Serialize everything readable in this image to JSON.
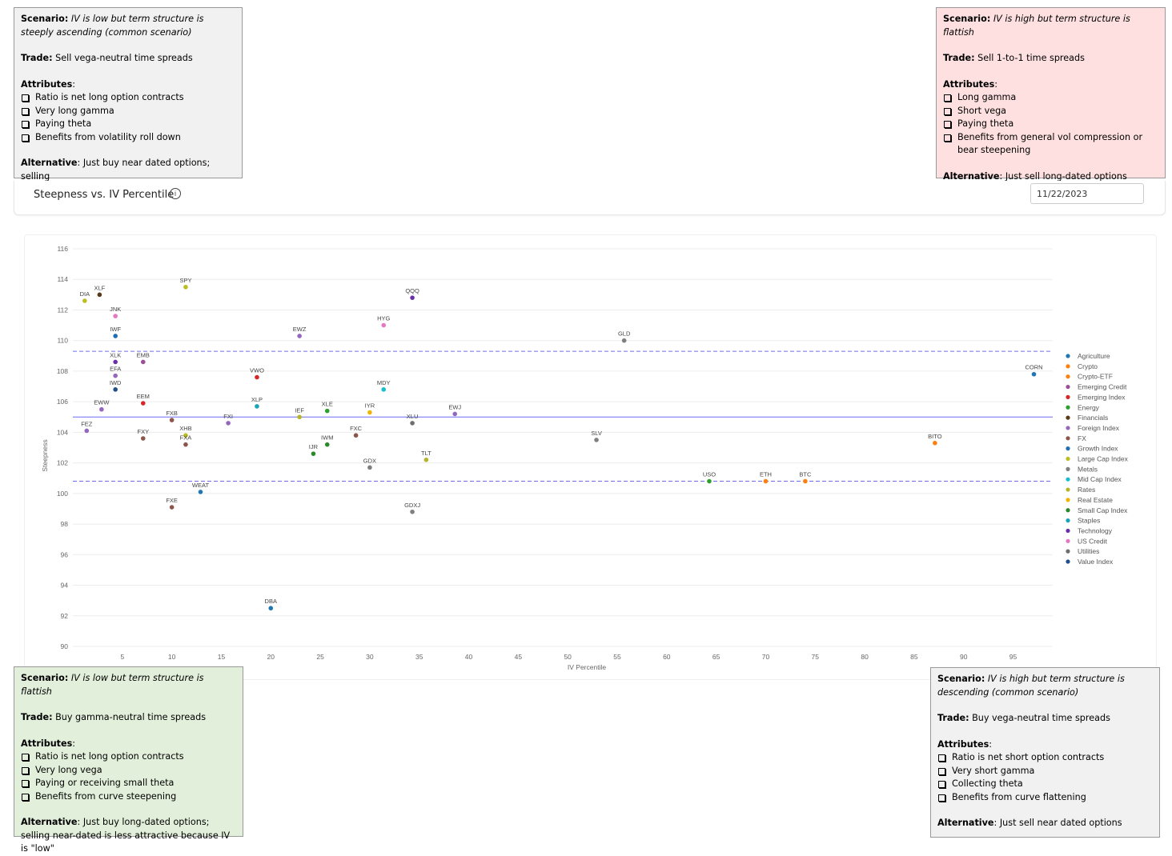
{
  "header": {
    "title": "Steepness vs. IV Percentile",
    "info_icon": "info-icon",
    "date_value": "11/22/2023"
  },
  "boxes": {
    "top_left": {
      "scenario_label": "Scenario:",
      "scenario": "IV is low but term structure is steeply ascending (common scenario)",
      "trade_label": "Trade:",
      "trade": "Sell vega-neutral time spreads",
      "attributes_label": "Attributes",
      "attributes": [
        "Ratio is net long option contracts",
        "Very long gamma",
        "Paying theta",
        "Benefits from volatility roll down"
      ],
      "alternative_label": "Alternative",
      "alternative": ": Just buy near dated options; selling"
    },
    "top_right": {
      "scenario_label": "Scenario:",
      "scenario": "IV is high but term structure is flattish",
      "trade_label": "Trade:",
      "trade": "Sell 1-to-1 time spreads",
      "attributes_label": "Attributes",
      "attributes": [
        "Long gamma",
        "Short vega",
        "Paying theta",
        "Benefits from general vol compression or bear steepening"
      ],
      "alternative_label": "Alternative",
      "alternative": ": Just sell long-dated options"
    },
    "bottom_left": {
      "scenario_label": "Scenario:",
      "scenario": "IV is low but term structure is flattish",
      "trade_label": "Trade:",
      "trade": "Buy gamma-neutral time spreads",
      "attributes_label": "Attributes",
      "attributes": [
        "Ratio is net long option contracts",
        "Very long vega",
        "Paying or receiving small theta",
        "Benefits from curve steepening"
      ],
      "alternative_label": "Alternative",
      "alternative": ": Just buy long-dated options; selling near-dated is less attractive because IV is \"low\""
    },
    "bottom_right": {
      "scenario_label": "Scenario:",
      "scenario": "IV is high but term structure is descending (common scenario)",
      "trade_label": "Trade:",
      "trade": "Buy vega-neutral time spreads",
      "attributes_label": "Attributes",
      "attributes": [
        "Ratio is net short option contracts",
        "Very short gamma",
        "Collecting theta",
        "Benefits from curve flattening"
      ],
      "alternative_label": "Alternative",
      "alternative": ": Just sell near dated options"
    }
  },
  "chart_data": {
    "type": "scatter",
    "xlabel": "IV Percentile",
    "ylabel": "Steepness",
    "xlim": [
      0,
      99
    ],
    "ylim": [
      90,
      116
    ],
    "xticks": [
      5,
      10,
      15,
      20,
      25,
      30,
      35,
      40,
      45,
      50,
      55,
      60,
      65,
      70,
      75,
      80,
      85,
      90,
      95
    ],
    "yticks": [
      90,
      92,
      94,
      96,
      98,
      100,
      102,
      104,
      106,
      108,
      110,
      112,
      114,
      116
    ],
    "grid": "horizontal",
    "legend_position": "right",
    "reference_lines": [
      {
        "y": 109.3,
        "style": "dashed"
      },
      {
        "y": 105.0,
        "style": "solid"
      },
      {
        "y": 100.8,
        "style": "dashed"
      }
    ],
    "categories": [
      {
        "name": "Agriculture",
        "color": "#1f77b4"
      },
      {
        "name": "Crypto",
        "color": "#ff7f0e"
      },
      {
        "name": "Crypto-ETF",
        "color": "#ff7f0e"
      },
      {
        "name": "Emerging Credit",
        "color": "#9b4f96"
      },
      {
        "name": "Emerging Index",
        "color": "#d62728"
      },
      {
        "name": "Energy",
        "color": "#2ca02c"
      },
      {
        "name": "Financials",
        "color": "#5b3a1a"
      },
      {
        "name": "Foreign Index",
        "color": "#9467bd"
      },
      {
        "name": "FX",
        "color": "#8c564b"
      },
      {
        "name": "Growth Index",
        "color": "#1f6fb4"
      },
      {
        "name": "Large Cap Index",
        "color": "#bcbd22"
      },
      {
        "name": "Metals",
        "color": "#7f7f7f"
      },
      {
        "name": "Mid Cap Index",
        "color": "#17becf"
      },
      {
        "name": "Rates",
        "color": "#b5b52a"
      },
      {
        "name": "Real Estate",
        "color": "#f0b400"
      },
      {
        "name": "Small Cap Index",
        "color": "#2a8a2a"
      },
      {
        "name": "Staples",
        "color": "#1aa3b8"
      },
      {
        "name": "Technology",
        "color": "#6a2fa8"
      },
      {
        "name": "US Credit",
        "color": "#e377c2"
      },
      {
        "name": "Utilities",
        "color": "#6e6e6e"
      },
      {
        "name": "Value Index",
        "color": "#1f4f8a"
      }
    ],
    "points": [
      {
        "label": "DIA",
        "x": 1.2,
        "y": 112.6,
        "category": "Large Cap Index"
      },
      {
        "label": "XLF",
        "x": 2.7,
        "y": 113.0,
        "category": "Financials"
      },
      {
        "label": "SPY",
        "x": 11.4,
        "y": 113.5,
        "category": "Large Cap Index"
      },
      {
        "label": "JNK",
        "x": 4.3,
        "y": 111.6,
        "category": "US Credit"
      },
      {
        "label": "IWF",
        "x": 4.3,
        "y": 110.3,
        "category": "Growth Index"
      },
      {
        "label": "QQQ",
        "x": 34.3,
        "y": 112.8,
        "category": "Technology"
      },
      {
        "label": "HYG",
        "x": 31.4,
        "y": 111.0,
        "category": "US Credit"
      },
      {
        "label": "EWZ",
        "x": 22.9,
        "y": 110.3,
        "category": "Foreign Index"
      },
      {
        "label": "GLD",
        "x": 55.7,
        "y": 110.0,
        "category": "Metals"
      },
      {
        "label": "XLK",
        "x": 4.3,
        "y": 108.6,
        "category": "Technology"
      },
      {
        "label": "EMB",
        "x": 7.1,
        "y": 108.6,
        "category": "Emerging Credit"
      },
      {
        "label": "EFA",
        "x": 4.3,
        "y": 107.7,
        "category": "Foreign Index"
      },
      {
        "label": "VWO",
        "x": 18.6,
        "y": 107.6,
        "category": "Emerging Index"
      },
      {
        "label": "IWD",
        "x": 4.3,
        "y": 106.8,
        "category": "Value Index"
      },
      {
        "label": "MDY",
        "x": 31.4,
        "y": 106.8,
        "category": "Mid Cap Index"
      },
      {
        "label": "CORN",
        "x": 97.1,
        "y": 107.8,
        "category": "Agriculture"
      },
      {
        "label": "EEM",
        "x": 7.1,
        "y": 105.9,
        "category": "Emerging Index"
      },
      {
        "label": "XLP",
        "x": 18.6,
        "y": 105.7,
        "category": "Staples"
      },
      {
        "label": "EWW",
        "x": 2.9,
        "y": 105.5,
        "category": "Foreign Index"
      },
      {
        "label": "XLE",
        "x": 25.7,
        "y": 105.4,
        "category": "Energy"
      },
      {
        "label": "IYR",
        "x": 30.0,
        "y": 105.3,
        "category": "Real Estate"
      },
      {
        "label": "EWJ",
        "x": 38.6,
        "y": 105.2,
        "category": "Foreign Index"
      },
      {
        "label": "IEF",
        "x": 22.9,
        "y": 105.0,
        "category": "Rates"
      },
      {
        "label": "FXB",
        "x": 10.0,
        "y": 104.8,
        "category": "FX"
      },
      {
        "label": "FXI",
        "x": 15.7,
        "y": 104.6,
        "category": "Foreign Index"
      },
      {
        "label": "XLU",
        "x": 34.3,
        "y": 104.6,
        "category": "Utilities"
      },
      {
        "label": "FEZ",
        "x": 1.4,
        "y": 104.1,
        "category": "Foreign Index"
      },
      {
        "label": "FXY",
        "x": 7.1,
        "y": 103.6,
        "category": "FX"
      },
      {
        "label": "XHB",
        "x": 11.4,
        "y": 103.8,
        "category": "Large Cap Index"
      },
      {
        "label": "FXA",
        "x": 11.4,
        "y": 103.2,
        "category": "FX"
      },
      {
        "label": "FXC",
        "x": 28.6,
        "y": 103.8,
        "category": "FX"
      },
      {
        "label": "IWM",
        "x": 25.7,
        "y": 103.2,
        "category": "Small Cap Index"
      },
      {
        "label": "IJR",
        "x": 24.3,
        "y": 102.6,
        "category": "Small Cap Index"
      },
      {
        "label": "SLV",
        "x": 52.9,
        "y": 103.5,
        "category": "Metals"
      },
      {
        "label": "BITO",
        "x": 87.1,
        "y": 103.3,
        "category": "Crypto-ETF"
      },
      {
        "label": "TLT",
        "x": 35.7,
        "y": 102.2,
        "category": "Rates"
      },
      {
        "label": "GDX",
        "x": 30.0,
        "y": 101.7,
        "category": "Metals"
      },
      {
        "label": "USO",
        "x": 64.3,
        "y": 100.8,
        "category": "Energy"
      },
      {
        "label": "ETH",
        "x": 70.0,
        "y": 100.8,
        "category": "Crypto"
      },
      {
        "label": "BTC",
        "x": 74.0,
        "y": 100.8,
        "category": "Crypto"
      },
      {
        "label": "WEAT",
        "x": 12.9,
        "y": 100.1,
        "category": "Agriculture"
      },
      {
        "label": "FXE",
        "x": 10.0,
        "y": 99.1,
        "category": "FX"
      },
      {
        "label": "GDXJ",
        "x": 34.3,
        "y": 98.8,
        "category": "Metals"
      },
      {
        "label": "DBA",
        "x": 20.0,
        "y": 92.5,
        "category": "Agriculture"
      }
    ]
  }
}
